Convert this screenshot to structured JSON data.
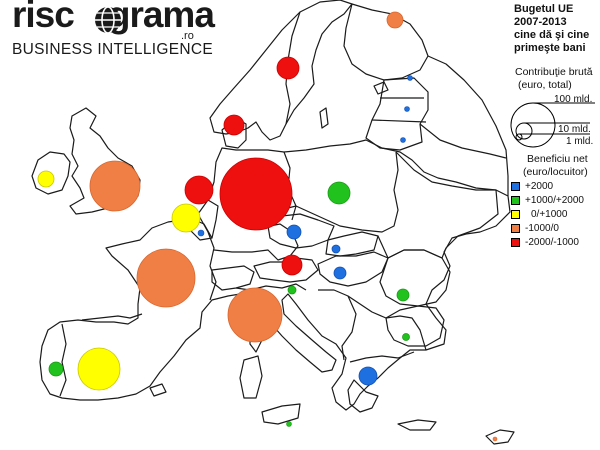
{
  "logo": {
    "wordmark_before": "risc",
    "wordmark_after": "grama",
    "suffix": ".ro",
    "tagline": "BUSINESS INTELLIGENCE",
    "globe_icon": "globe-icon"
  },
  "title": {
    "line1": "Bugetul UE",
    "line2": "2007-2013",
    "line3": "cine dă şi cine",
    "line4": "primeşte bani"
  },
  "legend": {
    "size_title_line1": "Contribuţie brută",
    "size_title_line2": "(euro, total)",
    "size_ref_large": "100 mld.",
    "size_ref_medium": "10 mld.",
    "size_ref_small": "1 mld.",
    "color_title_line1": "Beneficiu net",
    "color_title_line2": "(euro/locuitor)",
    "classes": [
      {
        "label": "+2000",
        "color": "#1e6fe0"
      },
      {
        "label": "+1000/+2000",
        "color": "#22c21e"
      },
      {
        "label": "0/+1000",
        "color": "#ffff00"
      },
      {
        "label": "-1000/0",
        "color": "#f07f45"
      },
      {
        "label": "-2000/-1000",
        "color": "#ee0f0f"
      }
    ]
  },
  "map_data": {
    "bubbles": [
      {
        "name": "germany-bubble",
        "class": "-2000/-1000",
        "color": "#ee0f0f"
      },
      {
        "name": "france-bubble",
        "class": "-1000/0",
        "color": "#f07f45"
      },
      {
        "name": "italy-bubble",
        "class": "-1000/0",
        "color": "#f07f45"
      },
      {
        "name": "united-kingdom-bubble",
        "class": "-1000/0",
        "color": "#f07f45"
      },
      {
        "name": "spain-bubble",
        "class": "0/+1000",
        "color": "#ffff00"
      },
      {
        "name": "netherlands-bubble",
        "class": "-2000/-1000",
        "color": "#ee0f0f"
      },
      {
        "name": "belgium-bubble",
        "class": "0/+1000",
        "color": "#ffff00"
      },
      {
        "name": "poland-bubble",
        "class": "+1000/+2000",
        "color": "#22c21e"
      },
      {
        "name": "sweden-bubble",
        "class": "-2000/-1000",
        "color": "#ee0f0f"
      },
      {
        "name": "denmark-bubble",
        "class": "-2000/-1000",
        "color": "#ee0f0f"
      },
      {
        "name": "austria-bubble",
        "class": "-2000/-1000",
        "color": "#ee0f0f"
      },
      {
        "name": "finland-bubble",
        "class": "-1000/0",
        "color": "#f07f45"
      },
      {
        "name": "ireland-bubble",
        "class": "0/+1000",
        "color": "#ffff00"
      },
      {
        "name": "greece-bubble",
        "class": "+2000",
        "color": "#1e6fe0"
      },
      {
        "name": "czech-republic-bubble",
        "class": "+2000",
        "color": "#1e6fe0"
      },
      {
        "name": "hungary-bubble",
        "class": "+2000",
        "color": "#1e6fe0"
      },
      {
        "name": "portugal-bubble",
        "class": "+1000/+2000",
        "color": "#22c21e"
      },
      {
        "name": "romania-bubble",
        "class": "+1000/+2000",
        "color": "#22c21e"
      },
      {
        "name": "slovakia-bubble",
        "class": "+2000",
        "color": "#1e6fe0"
      },
      {
        "name": "slovenia-bubble",
        "class": "+1000/+2000",
        "color": "#22c21e"
      },
      {
        "name": "bulgaria-bubble",
        "class": "+1000/+2000",
        "color": "#22c21e"
      },
      {
        "name": "luxembourg-bubble",
        "class": "+2000",
        "color": "#1e6fe0"
      },
      {
        "name": "estonia-bubble",
        "class": "+2000",
        "color": "#1e6fe0"
      },
      {
        "name": "latvia-bubble",
        "class": "+2000",
        "color": "#1e6fe0"
      },
      {
        "name": "lithuania-bubble",
        "class": "+2000",
        "color": "#1e6fe0"
      },
      {
        "name": "malta-bubble",
        "class": "+1000/+2000",
        "color": "#22c21e"
      },
      {
        "name": "cyprus-bubble",
        "class": "-1000/0",
        "color": "#f07f45"
      }
    ]
  }
}
